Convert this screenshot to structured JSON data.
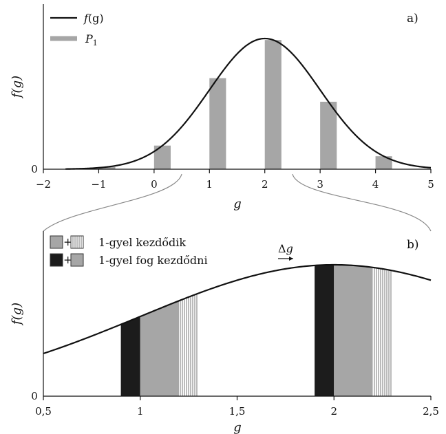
{
  "chart_data": [
    {
      "type": "line",
      "panel_label": "a)",
      "xlabel": "g",
      "ylabel": "f(g)",
      "xlim": [
        -2,
        5
      ],
      "ylim": [
        0,
        1
      ],
      "x_ticks": [
        "−2",
        "−1",
        "0",
        "1",
        "2",
        "3",
        "4",
        "5"
      ],
      "x_tick_values": [
        -2,
        -1,
        0,
        1,
        2,
        3,
        4,
        5
      ],
      "y_ticks": [
        "0"
      ],
      "curve": {
        "mean": 2,
        "sd": 1,
        "x_start": -1.6,
        "x_end": 5
      },
      "series": [
        {
          "name": "f(g)",
          "color": "#111111",
          "kind": "line"
        },
        {
          "name": "P1",
          "color": "#a6a6a6",
          "kind": "bar"
        }
      ],
      "bars": [
        {
          "x0": -1,
          "x1": -0.7
        },
        {
          "x0": 0,
          "x1": 0.3
        },
        {
          "x0": 1,
          "x1": 1.3
        },
        {
          "x0": 2,
          "x1": 2.3
        },
        {
          "x0": 3,
          "x1": 3.3
        },
        {
          "x0": 4,
          "x1": 4.3
        }
      ],
      "legend": {
        "placement": "top-left",
        "line_label_main": "f",
        "line_label_arg": "(g)",
        "bar_label_main": "P",
        "bar_label_sub": "1"
      },
      "zoom_range": [
        0.5,
        2.5
      ]
    },
    {
      "type": "line",
      "panel_label": "b)",
      "xlabel": "g",
      "ylabel": "f(g)",
      "xlim": [
        0.5,
        2.5
      ],
      "ylim": [
        0,
        1
      ],
      "x_ticks": [
        "0,5",
        "1",
        "1,5",
        "2",
        "2,5"
      ],
      "x_tick_values": [
        0.5,
        1,
        1.5,
        2,
        2.5
      ],
      "y_ticks": [
        "0"
      ],
      "curve": {
        "mean": 2,
        "sd": 1
      },
      "bars": [
        {
          "x0": 0.9,
          "x1": 1.0,
          "fill": "black"
        },
        {
          "x0": 1.0,
          "x1": 1.2,
          "fill": "gray"
        },
        {
          "x0": 1.2,
          "x1": 1.3,
          "fill": "hatched"
        },
        {
          "x0": 1.9,
          "x1": 2.0,
          "fill": "black"
        },
        {
          "x0": 2.0,
          "x1": 2.2,
          "fill": "gray"
        },
        {
          "x0": 2.2,
          "x1": 2.3,
          "fill": "hatched"
        }
      ],
      "colors": {
        "black": "#1c1c1c",
        "gray": "#a6a6a6"
      },
      "legend": {
        "placement": "top-left",
        "entries": [
          {
            "swatches": [
              "gray",
              "hatched"
            ],
            "plus": "+",
            "label": "1-gyel kezdődik"
          },
          {
            "swatches": [
              "black",
              "gray"
            ],
            "plus": "+",
            "label": "1-gyel fog kezdődni"
          }
        ]
      },
      "annotation": {
        "delta": "Δ",
        "symbol": "g"
      }
    }
  ]
}
